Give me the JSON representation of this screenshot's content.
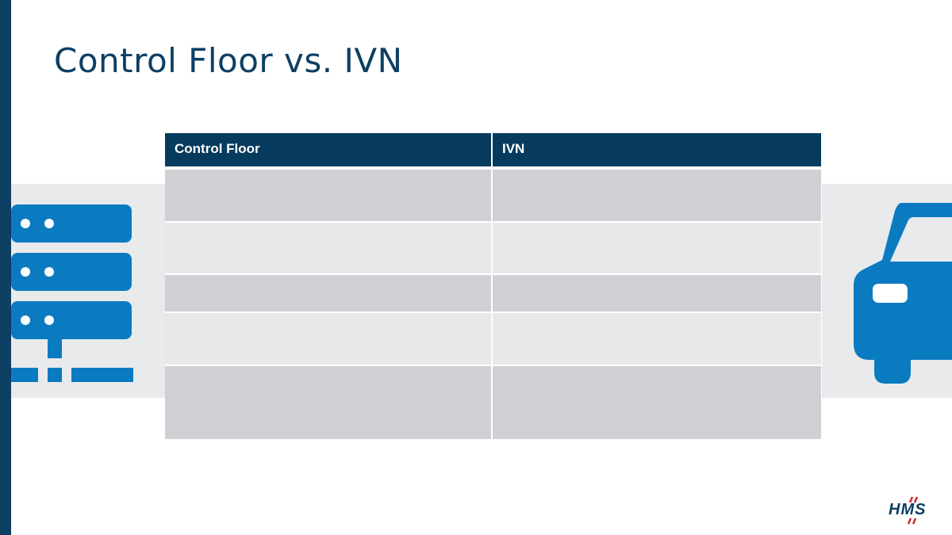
{
  "slide": {
    "title": "Control Floor vs. IVN"
  },
  "table": {
    "headers": [
      "Control Floor",
      "IVN"
    ],
    "rows": [
      [
        "",
        ""
      ],
      [
        "",
        ""
      ],
      [
        "",
        ""
      ],
      [
        "",
        ""
      ],
      [
        "",
        ""
      ]
    ]
  },
  "icons": {
    "left": "server-rack-icon",
    "right": "car-icon"
  },
  "logo": {
    "text": "HMS"
  },
  "colors": {
    "brand_dark": "#0d3f63",
    "header_bg": "#073b5e",
    "icon_blue": "#0b7bc1",
    "row_dark": "#ced0d3",
    "row_light": "#e7e8ea",
    "logo_accent": "#d3262e"
  }
}
